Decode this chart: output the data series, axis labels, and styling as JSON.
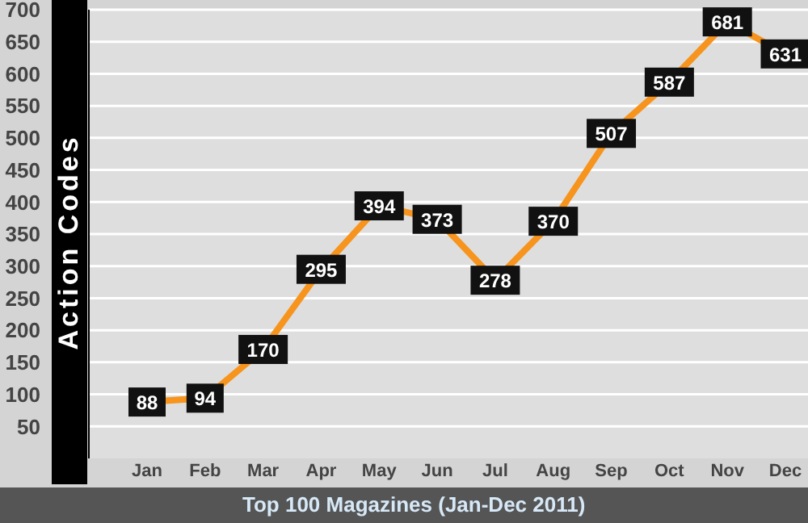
{
  "chart_data": {
    "type": "line",
    "title": "Top 100 Magazines (Jan-Dec 2011)",
    "ylabel": "Action Codes",
    "categories": [
      "Jan",
      "Feb",
      "Mar",
      "Apr",
      "May",
      "Jun",
      "Jul",
      "Aug",
      "Sep",
      "Oct",
      "Nov",
      "Dec"
    ],
    "series": [
      {
        "color": "#f7941d",
        "values": [
          88,
          94,
          170,
          295,
          394,
          373,
          278,
          370,
          507,
          587,
          681,
          631
        ]
      }
    ],
    "ylim": [
      0,
      700
    ],
    "yticks": [
      50,
      100,
      150,
      200,
      250,
      300,
      350,
      400,
      450,
      500,
      550,
      600,
      650,
      700
    ],
    "grid": "y",
    "data_labels": true,
    "marker": "square",
    "line_style": "solid"
  }
}
